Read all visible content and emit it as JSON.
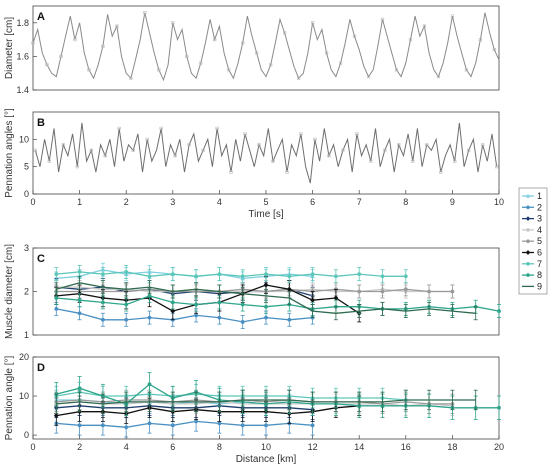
{
  "chart_data": [
    {
      "panel": "A",
      "type": "line",
      "ylabel": "Diameter [cm]",
      "xlabel": "",
      "xlim": [
        0,
        10
      ],
      "ylim": [
        1.4,
        1.9
      ],
      "yticks": [
        1.4,
        1.6,
        1.8
      ],
      "xticks": [],
      "series": [
        {
          "color": "#8a8a8a",
          "x": [
            0,
            0.1,
            0.2,
            0.3,
            0.4,
            0.5,
            0.6,
            0.7,
            0.8,
            0.9,
            1.0,
            1.1,
            1.2,
            1.3,
            1.4,
            1.5,
            1.6,
            1.7,
            1.8,
            1.9,
            2.0,
            2.1,
            2.2,
            2.3,
            2.4,
            2.5,
            2.6,
            2.7,
            2.8,
            2.9,
            3.0,
            3.1,
            3.2,
            3.3,
            3.4,
            3.5,
            3.6,
            3.7,
            3.8,
            3.9,
            4.0,
            4.1,
            4.2,
            4.3,
            4.4,
            4.5,
            4.6,
            4.7,
            4.8,
            4.9,
            5.0,
            5.1,
            5.2,
            5.3,
            5.4,
            5.5,
            5.6,
            5.7,
            5.8,
            5.9,
            6.0,
            6.1,
            6.2,
            6.3,
            6.4,
            6.5,
            6.6,
            6.7,
            6.8,
            6.9,
            7.0,
            7.1,
            7.2,
            7.3,
            7.4,
            7.5,
            7.6,
            7.7,
            7.8,
            7.9,
            8.0,
            8.1,
            8.2,
            8.3,
            8.4,
            8.5,
            8.6,
            8.7,
            8.8,
            8.9,
            9.0,
            9.1,
            9.2,
            9.3,
            9.4,
            9.5,
            9.6,
            9.7,
            9.8,
            9.9,
            10.0
          ],
          "y": [
            1.68,
            1.76,
            1.62,
            1.55,
            1.5,
            1.48,
            1.6,
            1.72,
            1.84,
            1.7,
            1.8,
            1.62,
            1.52,
            1.47,
            1.55,
            1.66,
            1.85,
            1.72,
            1.78,
            1.6,
            1.5,
            1.47,
            1.58,
            1.7,
            1.86,
            1.74,
            1.62,
            1.52,
            1.46,
            1.55,
            1.8,
            1.7,
            1.76,
            1.6,
            1.5,
            1.47,
            1.56,
            1.68,
            1.82,
            1.7,
            1.78,
            1.62,
            1.52,
            1.47,
            1.56,
            1.68,
            1.84,
            1.72,
            1.62,
            1.52,
            1.48,
            1.55,
            1.68,
            1.82,
            1.74,
            1.64,
            1.54,
            1.47,
            1.5,
            1.62,
            1.8,
            1.7,
            1.76,
            1.62,
            1.52,
            1.48,
            1.56,
            1.68,
            1.82,
            1.72,
            1.64,
            1.54,
            1.48,
            1.52,
            1.66,
            1.82,
            1.72,
            1.62,
            1.52,
            1.48,
            1.56,
            1.7,
            1.84,
            1.72,
            1.78,
            1.62,
            1.52,
            1.48,
            1.56,
            1.68,
            1.84,
            1.72,
            1.62,
            1.52,
            1.48,
            1.56,
            1.7,
            1.86,
            1.74,
            1.64,
            1.58
          ]
        }
      ]
    },
    {
      "panel": "B",
      "type": "line",
      "ylabel": "Pennation angles [°]",
      "xlabel": "Time [s]",
      "xlim": [
        0,
        10
      ],
      "ylim": [
        0,
        15
      ],
      "yticks": [
        0,
        5,
        10
      ],
      "xticks": [
        0,
        1,
        2,
        3,
        4,
        5,
        6,
        7,
        8,
        9,
        10
      ],
      "series": [
        {
          "color": "#6e6e6e",
          "x": [
            0.05,
            0.15,
            0.25,
            0.35,
            0.45,
            0.55,
            0.65,
            0.75,
            0.85,
            0.95,
            1.05,
            1.15,
            1.25,
            1.35,
            1.45,
            1.55,
            1.65,
            1.75,
            1.85,
            1.95,
            2.05,
            2.15,
            2.25,
            2.35,
            2.45,
            2.55,
            2.65,
            2.75,
            2.85,
            2.95,
            3.05,
            3.15,
            3.25,
            3.35,
            3.45,
            3.55,
            3.65,
            3.75,
            3.85,
            3.95,
            4.05,
            4.15,
            4.25,
            4.35,
            4.45,
            4.55,
            4.65,
            4.75,
            4.85,
            4.95,
            5.05,
            5.15,
            5.25,
            5.35,
            5.45,
            5.55,
            5.65,
            5.75,
            5.85,
            5.95,
            6.05,
            6.15,
            6.25,
            6.35,
            6.45,
            6.55,
            6.65,
            6.75,
            6.85,
            6.95,
            7.05,
            7.15,
            7.25,
            7.35,
            7.45,
            7.55,
            7.65,
            7.75,
            7.85,
            7.95,
            8.05,
            8.15,
            8.25,
            8.35,
            8.45,
            8.55,
            8.65,
            8.75,
            8.85,
            8.95,
            9.05,
            9.15,
            9.25,
            9.35,
            9.45,
            9.55,
            9.65,
            9.75,
            9.85,
            9.95
          ],
          "y": [
            8,
            5,
            10,
            6,
            12,
            4,
            9,
            7,
            11,
            5,
            13,
            6,
            8,
            4,
            9,
            7,
            10,
            5,
            12,
            6,
            9,
            8,
            11,
            4,
            10,
            6,
            8,
            12,
            5,
            9,
            7,
            10,
            4,
            9,
            11,
            6,
            8,
            10,
            5,
            12,
            7,
            9,
            4,
            10,
            6,
            11,
            8,
            5,
            9,
            7,
            12,
            6,
            8,
            10,
            4,
            9,
            7,
            11,
            5,
            2,
            10,
            6,
            12,
            7,
            9,
            5,
            8,
            10,
            4,
            11,
            7,
            9,
            6,
            12,
            5,
            8,
            10,
            4,
            9,
            7,
            11,
            6,
            12,
            5,
            9,
            8,
            10,
            4,
            7,
            9,
            6,
            13,
            5,
            8,
            10,
            4,
            9,
            6,
            11,
            5
          ]
        }
      ]
    },
    {
      "panel": "C",
      "type": "line",
      "ylabel": "Muscle diameter [cm]",
      "xlabel": "",
      "xlim": [
        0,
        20
      ],
      "ylim": [
        1,
        3
      ],
      "yticks": [
        1,
        2,
        3
      ],
      "x": [
        1,
        2,
        3,
        4,
        5,
        6,
        7,
        8,
        9,
        10,
        11,
        12,
        13,
        14,
        15,
        16,
        17,
        18,
        19,
        20
      ],
      "series": [
        {
          "name": "1",
          "color": "#7ecfe0",
          "marker": "triangle",
          "y": [
            2.3,
            2.35,
            2.5,
            2.4,
            2.45,
            2.4,
            2.35,
            2.4,
            2.3,
            2.35,
            2.4,
            2.35,
            null,
            null,
            null,
            null,
            null,
            null,
            null,
            null
          ],
          "err": 0.15
        },
        {
          "name": "2",
          "color": "#4a90c2",
          "marker": "dot",
          "y": [
            1.6,
            1.5,
            1.35,
            1.35,
            1.4,
            1.35,
            1.45,
            1.4,
            1.3,
            1.4,
            1.35,
            1.4,
            null,
            null,
            null,
            null,
            null,
            null,
            null,
            null
          ],
          "err": 0.15
        },
        {
          "name": "3",
          "color": "#1f3f6e",
          "marker": "diamond",
          "y": [
            2.1,
            2.05,
            2.1,
            2.0,
            2.05,
            1.95,
            2.0,
            1.95,
            2.0,
            2.0,
            2.05,
            1.9,
            null,
            null,
            null,
            null,
            null,
            null,
            null,
            null
          ],
          "err": 0.2
        },
        {
          "name": "4",
          "color": "#c8c8c8",
          "marker": "dot",
          "y": [
            2.1,
            2.1,
            2.05,
            2.05,
            2.0,
            2.0,
            2.05,
            2.0,
            2.0,
            2.0,
            2.0,
            2.05,
            2.0,
            2.0,
            2.05,
            2.0,
            2.0,
            2.0,
            null,
            null
          ],
          "err": 0.15
        },
        {
          "name": "5",
          "color": "#9a9a9a",
          "marker": "dot",
          "y": [
            2.0,
            2.0,
            2.0,
            2.0,
            2.05,
            2.0,
            2.0,
            2.0,
            2.05,
            2.0,
            2.05,
            2.0,
            2.05,
            2.0,
            2.0,
            2.05,
            2.0,
            2.0,
            null,
            null
          ],
          "err": 0.15
        },
        {
          "name": "6",
          "color": "#111111",
          "marker": "diamond",
          "y": [
            1.9,
            1.95,
            1.85,
            1.8,
            1.85,
            1.55,
            1.7,
            1.75,
            1.95,
            2.15,
            2.05,
            1.8,
            1.85,
            1.5,
            null,
            null,
            null,
            null,
            null,
            null
          ],
          "err": 0.2
        },
        {
          "name": "7",
          "color": "#5cc7b8",
          "marker": "dot",
          "y": [
            2.4,
            2.45,
            2.4,
            2.45,
            2.35,
            2.4,
            2.35,
            2.4,
            2.35,
            2.4,
            2.35,
            2.4,
            2.35,
            2.4,
            2.35,
            2.35,
            null,
            null,
            null,
            null
          ],
          "err": 0.15
        },
        {
          "name": "8",
          "color": "#2fa58c",
          "marker": "dot",
          "y": [
            1.85,
            1.8,
            1.75,
            1.7,
            1.9,
            1.75,
            1.7,
            1.75,
            1.7,
            1.65,
            1.7,
            1.6,
            1.65,
            1.65,
            1.6,
            1.6,
            1.65,
            1.6,
            1.65,
            1.55
          ],
          "err": 0.15
        },
        {
          "name": "9",
          "color": "#2e6a4f",
          "marker": "none",
          "y": [
            2.05,
            2.2,
            2.1,
            2.05,
            2.1,
            2.0,
            2.05,
            2.0,
            1.95,
            1.9,
            1.85,
            1.55,
            1.5,
            1.55,
            1.6,
            1.55,
            1.6,
            1.55,
            1.5,
            null
          ],
          "err": 0.15
        }
      ]
    },
    {
      "panel": "D",
      "type": "line",
      "ylabel": "Pennation angle [°]",
      "xlabel": "Distance [km]",
      "xlim": [
        0,
        20
      ],
      "ylim": [
        -1,
        20
      ],
      "yticks": [
        0,
        10,
        20
      ],
      "xticks": [
        0,
        2,
        4,
        6,
        8,
        10,
        12,
        14,
        16,
        18,
        20
      ],
      "x": [
        1,
        2,
        3,
        4,
        5,
        6,
        7,
        8,
        9,
        10,
        11,
        12,
        13,
        14,
        15,
        16,
        17,
        18,
        19,
        20
      ],
      "series": [
        {
          "name": "1",
          "color": "#7ecfe0",
          "marker": "triangle",
          "y": [
            9,
            9,
            8.5,
            8,
            8.5,
            8,
            8.5,
            8,
            8.5,
            8,
            8,
            8,
            null,
            null,
            null,
            null,
            null,
            null,
            null,
            null
          ],
          "err": 2.5
        },
        {
          "name": "2",
          "color": "#4a90c2",
          "marker": "dot",
          "y": [
            3,
            2.5,
            2.5,
            2,
            3,
            2.5,
            3.5,
            3,
            2.5,
            2.5,
            3,
            2.5,
            null,
            null,
            null,
            null,
            null,
            null,
            null,
            null
          ],
          "err": 2.5
        },
        {
          "name": "3",
          "color": "#1f3f6e",
          "marker": "diamond",
          "y": [
            7,
            7.5,
            7,
            7,
            7.5,
            7,
            7,
            7.5,
            7,
            7,
            7,
            6.5,
            null,
            null,
            null,
            null,
            null,
            null,
            null,
            null
          ],
          "err": 2.5
        },
        {
          "name": "4",
          "color": "#c8c8c8",
          "marker": "dot",
          "y": [
            8,
            8.5,
            8,
            8,
            8.5,
            8,
            8,
            8.5,
            8,
            8,
            8,
            8,
            8,
            8,
            8,
            7.5,
            8,
            7.5,
            null,
            null
          ],
          "err": 2.5
        },
        {
          "name": "5",
          "color": "#9a9a9a",
          "marker": "dot",
          "y": [
            8.5,
            9,
            8.5,
            9,
            9,
            8.5,
            9,
            8.5,
            9,
            8.5,
            9,
            8.5,
            8.5,
            8.5,
            8,
            8.5,
            8,
            8,
            null,
            null
          ],
          "err": 2.5
        },
        {
          "name": "6",
          "color": "#111111",
          "marker": "diamond",
          "y": [
            5,
            6,
            6,
            5.5,
            7,
            6,
            6.5,
            6,
            6,
            6,
            5.5,
            6,
            7,
            7.5,
            null,
            null,
            null,
            null,
            null,
            null
          ],
          "err": 2.5
        },
        {
          "name": "7",
          "color": "#5cc7b8",
          "marker": "dot",
          "y": [
            10,
            11,
            10,
            10,
            10.5,
            10,
            10.5,
            10,
            10,
            10,
            10,
            9.5,
            9.5,
            9.5,
            9.5,
            9,
            null,
            null,
            null,
            null
          ],
          "err": 2.5
        },
        {
          "name": "8",
          "color": "#2fa58c",
          "marker": "dot",
          "y": [
            10.5,
            12,
            10,
            8,
            13,
            9.5,
            11,
            9,
            8.5,
            8,
            8.5,
            8,
            8,
            7.5,
            7.5,
            7.5,
            7.5,
            7,
            7,
            7
          ],
          "err": 3
        },
        {
          "name": "9",
          "color": "#2e6a4f",
          "marker": "none",
          "y": [
            8,
            8.5,
            8,
            8.5,
            8.5,
            8.5,
            8.5,
            8.5,
            9,
            9,
            9,
            8.5,
            8.5,
            8.5,
            8.5,
            9,
            9,
            9,
            9,
            null
          ],
          "err": 2.5
        }
      ]
    }
  ],
  "panel_labels": [
    "A",
    "B",
    "C",
    "D"
  ],
  "legend_entries": [
    "1",
    "2",
    "3",
    "4",
    "5",
    "6",
    "7",
    "8",
    "9"
  ]
}
